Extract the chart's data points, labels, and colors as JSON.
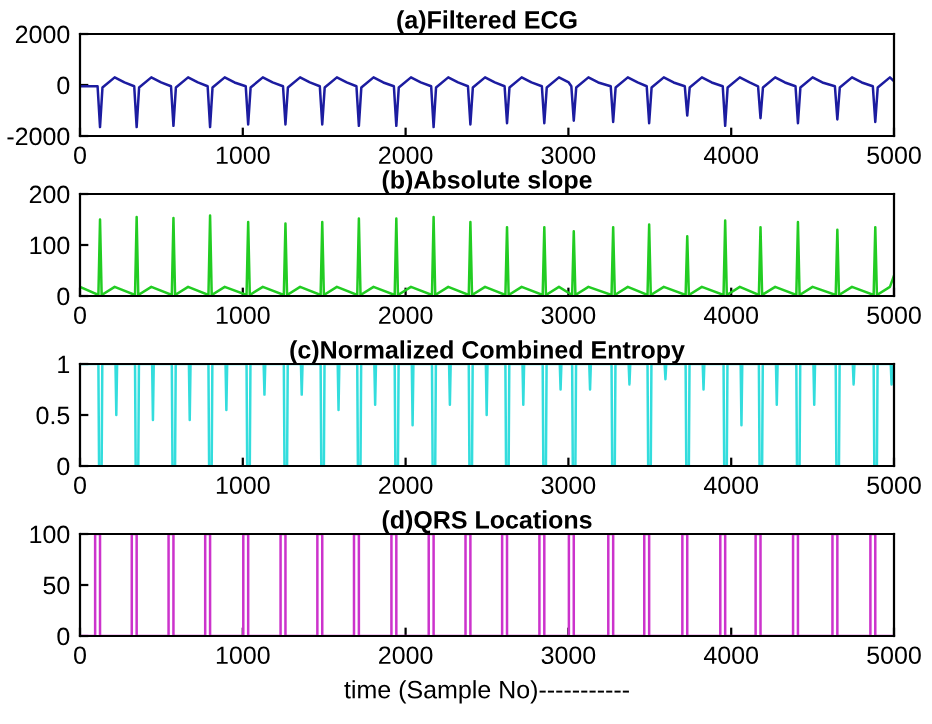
{
  "chart_data": [
    {
      "type": "line",
      "title": "(a)Filtered ECG",
      "xlim": [
        0,
        5000
      ],
      "xticks": [
        0,
        1000,
        2000,
        3000,
        4000,
        5000
      ],
      "ylim": [
        -2000,
        2000
      ],
      "yticks": [
        -2000,
        0,
        2000
      ],
      "series": [
        {
          "color": "#1c1ca0",
          "x": [
            0,
            108,
            123,
            138,
            213,
            273,
            333,
            348,
            363,
            438,
            498,
            559,
            574,
            589,
            664,
            724,
            784,
            799,
            814,
            889,
            949,
            1018,
            1033,
            1048,
            1123,
            1183,
            1247,
            1262,
            1277,
            1352,
            1412,
            1473,
            1488,
            1503,
            1578,
            1638,
            1698,
            1713,
            1728,
            1803,
            1863,
            1928,
            1943,
            1958,
            2033,
            2093,
            2157,
            2172,
            2187,
            2262,
            2322,
            2383,
            2398,
            2413,
            2488,
            2548,
            2608,
            2623,
            2638,
            2713,
            2773,
            2837,
            2852,
            2867,
            2942,
            3002,
            3018,
            3033,
            3048,
            3123,
            3183,
            3260,
            3275,
            3290,
            3365,
            3425,
            3481,
            3496,
            3511,
            3586,
            3646,
            3715,
            3730,
            3745,
            3820,
            3880,
            3948,
            3963,
            3978,
            4053,
            4113,
            4165,
            4180,
            4195,
            4270,
            4330,
            4395,
            4410,
            4425,
            4500,
            4560,
            4637,
            4652,
            4667,
            4742,
            4802,
            4870,
            4885,
            4900,
            4975,
            5000
          ],
          "values": [
            -50,
            -50,
            -1650,
            -100,
            300,
            100,
            -50,
            -1650,
            -100,
            300,
            100,
            -50,
            -1600,
            -100,
            300,
            100,
            -50,
            -1650,
            -100,
            300,
            100,
            -50,
            -1550,
            -100,
            300,
            100,
            -50,
            -1550,
            -100,
            300,
            100,
            -50,
            -1550,
            -100,
            300,
            100,
            -50,
            -1600,
            -100,
            300,
            100,
            -50,
            -1600,
            -100,
            300,
            100,
            -50,
            -1650,
            -100,
            300,
            100,
            -50,
            -1550,
            -100,
            300,
            100,
            -50,
            -1500,
            -100,
            300,
            100,
            -50,
            -1500,
            -100,
            300,
            100,
            -50,
            -1400,
            -100,
            300,
            100,
            -50,
            -1450,
            -100,
            300,
            100,
            -50,
            -1500,
            -100,
            300,
            100,
            -50,
            -1200,
            -100,
            300,
            100,
            -50,
            -1600,
            -100,
            300,
            100,
            -50,
            -1300,
            -100,
            300,
            100,
            -50,
            -1500,
            -100,
            300,
            100,
            -50,
            -1350,
            -100,
            300,
            100,
            -50,
            -1450,
            -100,
            300,
            150
          ]
        }
      ]
    },
    {
      "type": "line",
      "title": "(b)Absolute slope",
      "xlim": [
        0,
        5000
      ],
      "xticks": [
        0,
        1000,
        2000,
        3000,
        4000,
        5000
      ],
      "ylim": [
        0,
        200
      ],
      "yticks": [
        0,
        100,
        200
      ],
      "series": [
        {
          "color": "#22cc22",
          "x": [
            0,
            113,
            123,
            133,
            213,
            338,
            348,
            358,
            438,
            564,
            574,
            584,
            664,
            789,
            799,
            809,
            889,
            1023,
            1033,
            1043,
            1123,
            1252,
            1262,
            1272,
            1352,
            1478,
            1488,
            1498,
            1578,
            1703,
            1713,
            1723,
            1803,
            1933,
            1943,
            1953,
            2033,
            2162,
            2172,
            2182,
            2262,
            2388,
            2398,
            2408,
            2488,
            2613,
            2623,
            2633,
            2713,
            2842,
            2852,
            2862,
            2942,
            3023,
            3033,
            3043,
            3123,
            3265,
            3275,
            3285,
            3365,
            3486,
            3496,
            3506,
            3586,
            3720,
            3730,
            3740,
            3820,
            3953,
            3963,
            3973,
            4053,
            4170,
            4180,
            4190,
            4270,
            4400,
            4410,
            4420,
            4500,
            4642,
            4652,
            4662,
            4742,
            4875,
            4885,
            4895,
            4975,
            5000
          ],
          "values": [
            18,
            2,
            150,
            2,
            18,
            2,
            155,
            2,
            18,
            2,
            153,
            2,
            18,
            2,
            158,
            2,
            18,
            2,
            145,
            2,
            18,
            2,
            142,
            2,
            18,
            2,
            145,
            2,
            18,
            2,
            152,
            2,
            18,
            2,
            152,
            2,
            18,
            2,
            155,
            2,
            18,
            2,
            145,
            2,
            18,
            2,
            135,
            2,
            18,
            2,
            135,
            2,
            18,
            2,
            127,
            2,
            18,
            2,
            135,
            2,
            18,
            2,
            140,
            2,
            18,
            2,
            117,
            2,
            18,
            2,
            148,
            2,
            18,
            2,
            135,
            2,
            18,
            2,
            145,
            2,
            18,
            2,
            130,
            2,
            18,
            2,
            135,
            2,
            18,
            40
          ]
        }
      ]
    },
    {
      "type": "line",
      "title": "(c)Normalized Combined Entropy",
      "xlim": [
        0,
        5000
      ],
      "xticks": [
        0,
        1000,
        2000,
        3000,
        4000,
        5000
      ],
      "ylim": [
        0,
        1
      ],
      "yticks": [
        0,
        0.5,
        1
      ],
      "series": [
        {
          "color": "#33dddd",
          "x": [
            0,
            113,
            117,
            133,
            137,
            218,
            223,
            228,
            338,
            342,
            358,
            362,
            443,
            448,
            453,
            564,
            568,
            584,
            588,
            669,
            674,
            679,
            789,
            793,
            809,
            813,
            894,
            899,
            904,
            1023,
            1027,
            1043,
            1047,
            1128,
            1133,
            1138,
            1252,
            1256,
            1272,
            1276,
            1357,
            1362,
            1367,
            1478,
            1482,
            1498,
            1502,
            1583,
            1588,
            1593,
            1703,
            1707,
            1723,
            1727,
            1808,
            1813,
            1818,
            1933,
            1937,
            1953,
            1957,
            2038,
            2043,
            2048,
            2162,
            2166,
            2182,
            2186,
            2267,
            2272,
            2277,
            2388,
            2392,
            2408,
            2412,
            2493,
            2498,
            2503,
            2613,
            2617,
            2633,
            2637,
            2718,
            2723,
            2728,
            2842,
            2846,
            2862,
            2866,
            2947,
            2952,
            2957,
            3023,
            3027,
            3043,
            3047,
            3128,
            3133,
            3138,
            3265,
            3269,
            3285,
            3289,
            3370,
            3375,
            3380,
            3486,
            3490,
            3506,
            3510,
            3591,
            3596,
            3601,
            3720,
            3724,
            3740,
            3744,
            3825,
            3830,
            3835,
            3953,
            3957,
            3973,
            3977,
            4058,
            4063,
            4068,
            4170,
            4174,
            4190,
            4194,
            4275,
            4280,
            4285,
            4400,
            4404,
            4420,
            4424,
            4505,
            4510,
            4515,
            4642,
            4646,
            4662,
            4666,
            4747,
            4752,
            4757,
            4875,
            4879,
            4895,
            4899,
            4980,
            4985,
            4990,
            5000
          ],
          "values": [
            1,
            1,
            0,
            0,
            1,
            1,
            0.5,
            1,
            1,
            0,
            0,
            1,
            1,
            0.45,
            1,
            1,
            0,
            0,
            1,
            1,
            0.45,
            1,
            1,
            0,
            0,
            1,
            1,
            0.55,
            1,
            1,
            0,
            0,
            1,
            1,
            0.7,
            1,
            1,
            0,
            0,
            1,
            1,
            0.7,
            1,
            1,
            0,
            0,
            1,
            1,
            0.55,
            1,
            1,
            0,
            0,
            1,
            1,
            0.6,
            1,
            1,
            0,
            0,
            1,
            1,
            0.4,
            1,
            1,
            0,
            0,
            1,
            1,
            0.6,
            1,
            1,
            0,
            0,
            1,
            1,
            0.5,
            1,
            1,
            0,
            0,
            1,
            1,
            0.6,
            1,
            1,
            0,
            0,
            1,
            1,
            0.75,
            1,
            1,
            0,
            0,
            1,
            1,
            0.75,
            1,
            1,
            0,
            0,
            1,
            1,
            0.8,
            1,
            1,
            0,
            0,
            1,
            1,
            0.85,
            1,
            1,
            0,
            0,
            1,
            1,
            0.75,
            1,
            1,
            0,
            0,
            1,
            1,
            0.4,
            1,
            1,
            0,
            0,
            1,
            1,
            0.6,
            1,
            1,
            0,
            0,
            1,
            1,
            0.6,
            1,
            1,
            0,
            0,
            1,
            1,
            0.8,
            1,
            1,
            0,
            0,
            1,
            1,
            0.8,
            1,
            1
          ]
        }
      ]
    },
    {
      "type": "line",
      "title": "(d)QRS Locations",
      "xlabel": "time (Sample No)-----------",
      "xlim": [
        0,
        5000
      ],
      "xticks": [
        0,
        1000,
        2000,
        3000,
        4000,
        5000
      ],
      "ylim": [
        0,
        100
      ],
      "yticks": [
        0,
        50,
        100
      ],
      "series": [
        {
          "color": "#cc33cc",
          "x": [
            0,
            93,
            93,
            123,
            123,
            318,
            318,
            348,
            348,
            544,
            544,
            574,
            574,
            769,
            769,
            799,
            799,
            1003,
            1003,
            1033,
            1033,
            1232,
            1232,
            1262,
            1262,
            1458,
            1458,
            1488,
            1488,
            1683,
            1683,
            1713,
            1713,
            1913,
            1913,
            1943,
            1943,
            2142,
            2142,
            2172,
            2172,
            2368,
            2368,
            2398,
            2398,
            2593,
            2593,
            2623,
            2623,
            2822,
            2822,
            2852,
            2852,
            3003,
            3003,
            3033,
            3033,
            3245,
            3245,
            3275,
            3275,
            3466,
            3466,
            3496,
            3496,
            3700,
            3700,
            3730,
            3730,
            3933,
            3933,
            3963,
            3963,
            4150,
            4150,
            4180,
            4180,
            4380,
            4380,
            4410,
            4410,
            4622,
            4622,
            4652,
            4652,
            4855,
            4855,
            4885,
            4885,
            5000
          ],
          "values": [
            0,
            0,
            100,
            100,
            0,
            0,
            100,
            100,
            0,
            0,
            100,
            100,
            0,
            0,
            100,
            100,
            0,
            0,
            100,
            100,
            0,
            0,
            100,
            100,
            0,
            0,
            100,
            100,
            0,
            0,
            100,
            100,
            0,
            0,
            100,
            100,
            0,
            0,
            100,
            100,
            0,
            0,
            100,
            100,
            0,
            0,
            100,
            100,
            0,
            0,
            100,
            100,
            0,
            0,
            100,
            100,
            0,
            0,
            100,
            100,
            0,
            0,
            100,
            100,
            0,
            0,
            100,
            100,
            0,
            0,
            100,
            100,
            0,
            0,
            100,
            100,
            0,
            0,
            100,
            100,
            0,
            0,
            100,
            100,
            0,
            0,
            100,
            100,
            0,
            0
          ]
        }
      ]
    }
  ]
}
